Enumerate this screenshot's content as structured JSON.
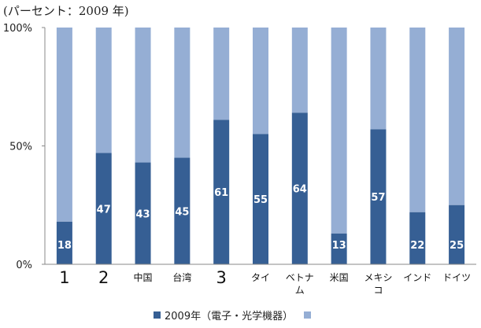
{
  "unit_note": "(パーセント：2009 年)",
  "colors": {
    "accent": "#365f94",
    "rest": "#95aed4",
    "axis": "#888888"
  },
  "legend": {
    "series1_label": "2009年（電子・光学機器）",
    "series2_label": ""
  },
  "chart_data": {
    "type": "bar",
    "stacked": true,
    "categories": [
      "1",
      "2",
      "中国",
      "台湾",
      "3",
      "タイ",
      "ベトナム",
      "米国",
      "メキシコ",
      "インド",
      "ドイツ"
    ],
    "series": [
      {
        "name": "2009年（電子・光学機器）",
        "values": [
          18,
          47,
          43,
          45,
          61,
          55,
          64,
          13,
          57,
          22,
          25
        ]
      },
      {
        "values": [
          82,
          53,
          57,
          55,
          39,
          45,
          36,
          87,
          43,
          78,
          75
        ]
      }
    ],
    "ylim": [
      0,
      100
    ],
    "yticks": [
      "0%",
      "50%",
      "100%"
    ],
    "legend_position": "bottom",
    "grid": false
  }
}
